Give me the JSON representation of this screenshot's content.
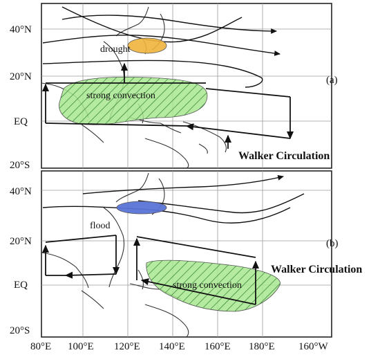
{
  "panels": [
    {
      "label": "(a)",
      "annotations": {
        "anomaly_region": "drought",
        "convection": "strong convection",
        "circulation": "Walker Circulation"
      },
      "colors": {
        "anomaly_fill": "#f0b43c",
        "convection_fill": "#a8e88f"
      }
    },
    {
      "label": "(b)",
      "annotations": {
        "anomaly_region": "flood",
        "convection": "strong convection",
        "circulation": "Walker Circulation"
      },
      "colors": {
        "anomaly_fill": "#5b74d6",
        "convection_fill": "#a8e88f"
      }
    }
  ],
  "lat_labels_a": [
    "40°N",
    "20°N",
    "EQ",
    "20°S"
  ],
  "lat_labels_b": [
    "40°N",
    "20°N",
    "EQ",
    "20°S"
  ],
  "lon_labels": [
    "80°E",
    "100°E",
    "120°E",
    "140°E",
    "160°E",
    "180°E",
    "160°W"
  ]
}
